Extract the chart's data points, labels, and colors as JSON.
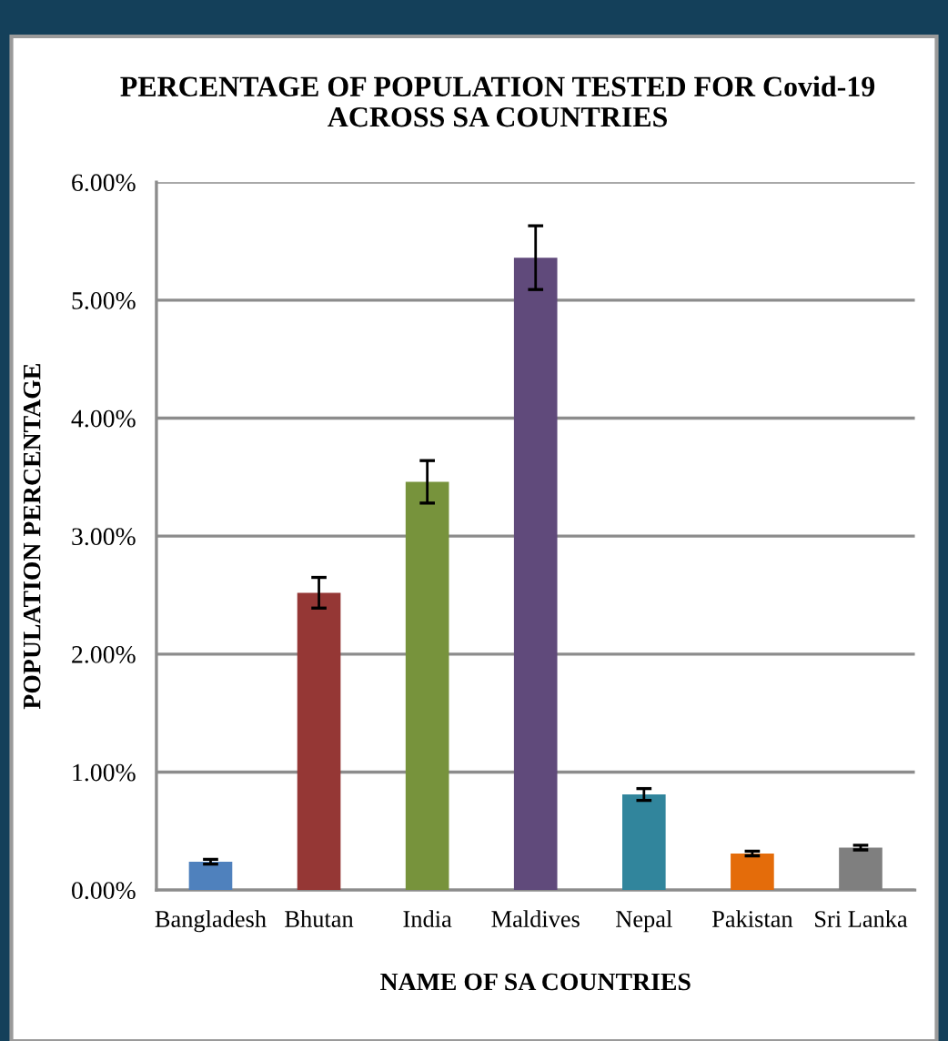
{
  "chart_data": {
    "type": "bar",
    "title": "PERCENTAGE OF POPULATION TESTED FOR Covid-19\nACROSS SA COUNTRIES",
    "xlabel": "NAME OF SA COUNTRIES",
    "ylabel": "POPULATION PERCENTAGE",
    "categories": [
      "Bangladesh",
      "Bhutan",
      "India",
      "Maldives",
      "Nepal",
      "Pakistan",
      "Sri Lanka"
    ],
    "values": [
      0.24,
      2.52,
      3.46,
      5.36,
      0.81,
      0.31,
      0.36
    ],
    "errors": [
      0.02,
      0.13,
      0.18,
      0.27,
      0.05,
      0.02,
      0.02
    ],
    "colors": [
      "#4f81bd",
      "#953735",
      "#77933c",
      "#604a7b",
      "#31859c",
      "#e46c0a",
      "#7f7f7f"
    ],
    "ylim": [
      0,
      6
    ],
    "yticks": [
      {
        "value": 0,
        "label": "0.00%"
      },
      {
        "value": 1,
        "label": "1.00%"
      },
      {
        "value": 2,
        "label": "2.00%"
      },
      {
        "value": 3,
        "label": "3.00%"
      },
      {
        "value": 4,
        "label": "4.00%"
      },
      {
        "value": 5,
        "label": "5.00%"
      },
      {
        "value": 6,
        "label": "6.00%"
      }
    ],
    "grid": "y"
  }
}
